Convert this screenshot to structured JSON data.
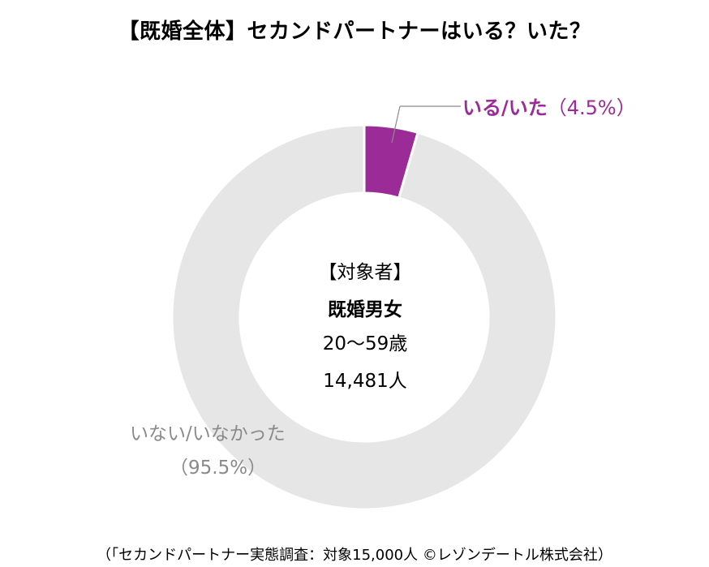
{
  "chart_data": {
    "type": "pie",
    "title": "【既婚全体】セカンドパートナーはいる？いた？",
    "slices": [
      {
        "label": "いる/いた",
        "value": 4.5,
        "value_label": "（4.5%）",
        "color": "#9b2b96"
      },
      {
        "label": "いない/いなかった",
        "value": 95.5,
        "value_label": "（95.5%）",
        "color": "#e6e6e6"
      }
    ],
    "donut": true,
    "center_text": {
      "heading": "【対象者】",
      "subject": "既婚男女",
      "age": "20～59歳",
      "count": "14,481人"
    }
  },
  "footer": {
    "source": "（「セカンドパートナー実態調査：対象15,000人 ©レゾンデートル株式会社）"
  }
}
